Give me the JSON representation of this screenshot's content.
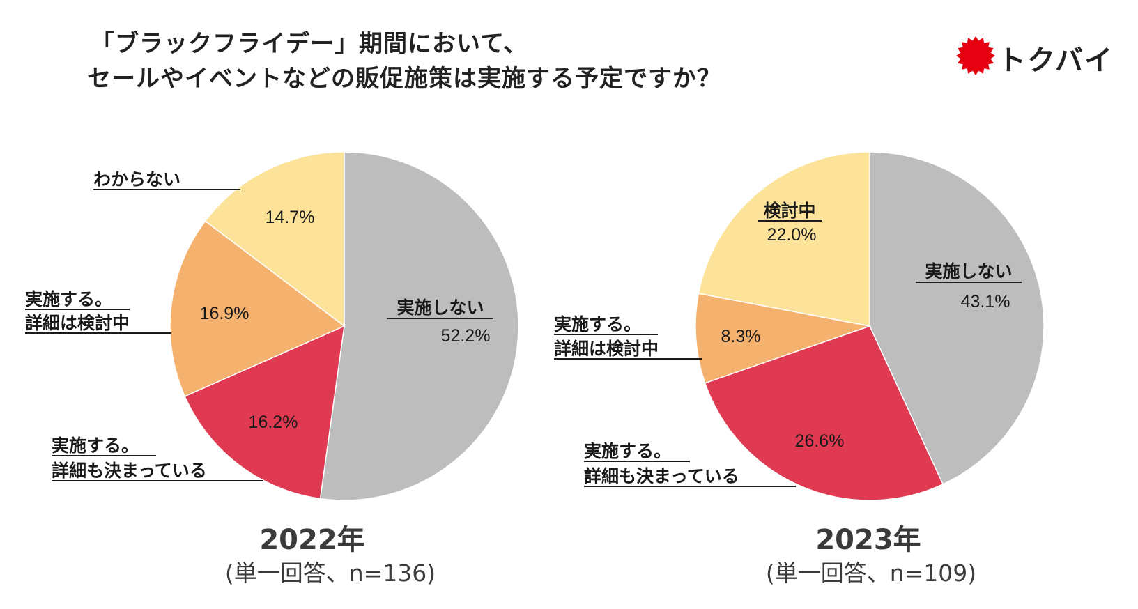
{
  "title": {
    "line1": "「ブラックフライデー」期間において、",
    "line2": "セールやイベントなどの販促施策は実施する予定ですか？"
  },
  "logo": {
    "text": "トクバイ",
    "color": "#e60012"
  },
  "colors": {
    "not_implement": "#bdbdbd",
    "implement_decided": "#e03a52",
    "implement_considering": "#f4b26e",
    "unknown_or_considering": "#fde29a"
  },
  "chart_data": [
    {
      "type": "pie",
      "title": "2022年",
      "subtitle": "(単一回答、n=136)",
      "slices": [
        {
          "label": "実施しない",
          "value": 52.2,
          "display": "52.2%",
          "color": "#bdbdbd"
        },
        {
          "label": "実施する。詳細も決まっている",
          "label_lines": [
            "実施する。",
            "詳細も決まっている"
          ],
          "value": 16.2,
          "display": "16.2%",
          "color": "#e03a52"
        },
        {
          "label": "実施する。詳細は検討中",
          "label_lines": [
            "実施する。",
            "詳細は検討中"
          ],
          "value": 16.9,
          "display": "16.9%",
          "color": "#f4b26e"
        },
        {
          "label": "わからない",
          "value": 14.7,
          "display": "14.7%",
          "color": "#fde29a"
        }
      ]
    },
    {
      "type": "pie",
      "title": "2023年",
      "subtitle": "(単一回答、n=109)",
      "slices": [
        {
          "label": "実施しない",
          "value": 43.1,
          "display": "43.1%",
          "color": "#bdbdbd"
        },
        {
          "label": "実施する。詳細も決まっている",
          "label_lines": [
            "実施する。",
            "詳細も決まっている"
          ],
          "value": 26.6,
          "display": "26.6%",
          "color": "#e03a52"
        },
        {
          "label": "実施する。詳細は検討中",
          "label_lines": [
            "実施する。",
            "詳細は検討中"
          ],
          "value": 8.3,
          "display": "8.3%",
          "color": "#f4b26e"
        },
        {
          "label": "検討中",
          "value": 22.0,
          "display": "22.0%",
          "color": "#fde29a"
        }
      ]
    }
  ]
}
